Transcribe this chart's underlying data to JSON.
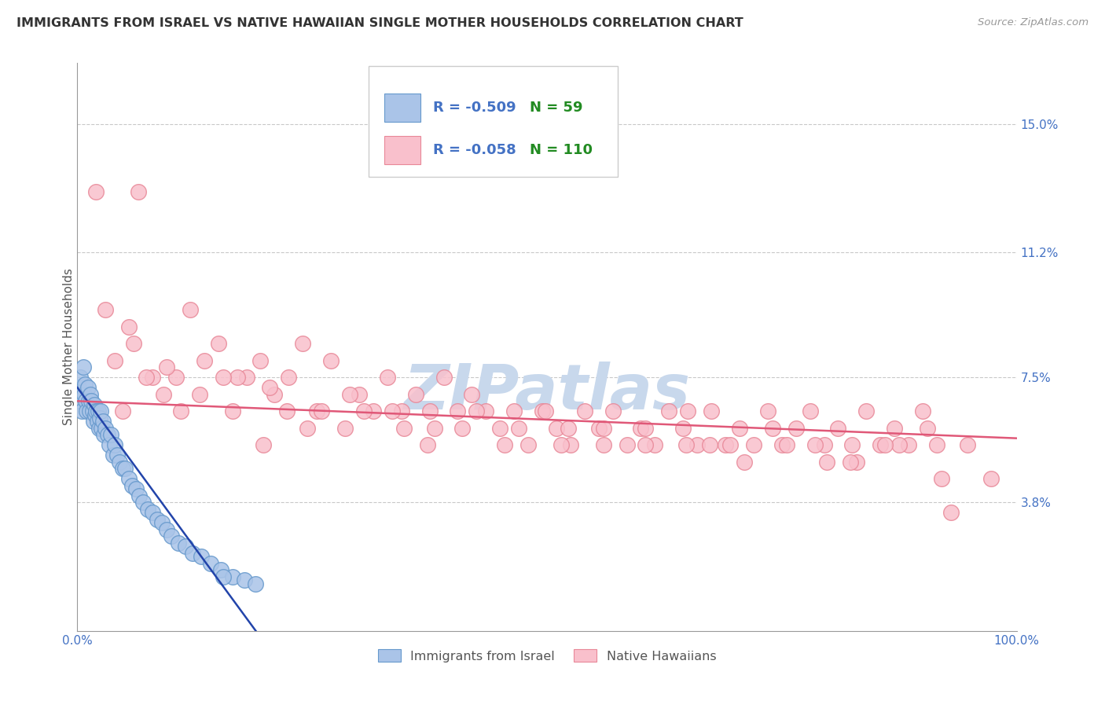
{
  "title": "IMMIGRANTS FROM ISRAEL VS NATIVE HAWAIIAN SINGLE MOTHER HOUSEHOLDS CORRELATION CHART",
  "source_text": "Source: ZipAtlas.com",
  "ylabel": "Single Mother Households",
  "yticks": [
    0.038,
    0.075,
    0.112,
    0.15
  ],
  "ytick_labels": [
    "3.8%",
    "7.5%",
    "11.2%",
    "15.0%"
  ],
  "xlim": [
    0.0,
    1.0
  ],
  "ylim": [
    0.0,
    0.168
  ],
  "xtick_positions": [
    0.0,
    1.0
  ],
  "xtick_labels": [
    "0.0%",
    "100.0%"
  ],
  "blue_R": -0.509,
  "blue_N": 59,
  "pink_R": -0.058,
  "pink_N": 110,
  "blue_marker_color": "#aac4e8",
  "blue_edge_color": "#6699cc",
  "pink_marker_color": "#f9c0cc",
  "pink_edge_color": "#e88898",
  "blue_line_color": "#2244aa",
  "pink_line_color": "#e05878",
  "axis_color": "#4472C4",
  "grid_color": "#bbbbbb",
  "title_color": "#333333",
  "legend_R_color": "#4472C4",
  "legend_N_color": "#228B22",
  "watermark_color": "#c8d8ec",
  "background_color": "#ffffff",
  "blue_x": [
    0.001,
    0.002,
    0.003,
    0.004,
    0.005,
    0.006,
    0.007,
    0.008,
    0.009,
    0.01,
    0.011,
    0.012,
    0.013,
    0.014,
    0.015,
    0.016,
    0.017,
    0.018,
    0.019,
    0.02,
    0.021,
    0.022,
    0.023,
    0.024,
    0.025,
    0.026,
    0.027,
    0.028,
    0.03,
    0.032,
    0.034,
    0.036,
    0.038,
    0.04,
    0.042,
    0.045,
    0.048,
    0.051,
    0.055,
    0.058,
    0.062,
    0.066,
    0.07,
    0.075,
    0.08,
    0.085,
    0.09,
    0.095,
    0.1,
    0.108,
    0.115,
    0.123,
    0.132,
    0.142,
    0.153,
    0.165,
    0.178,
    0.19,
    0.155
  ],
  "blue_y": [
    0.072,
    0.068,
    0.075,
    0.07,
    0.065,
    0.078,
    0.07,
    0.073,
    0.068,
    0.065,
    0.072,
    0.068,
    0.065,
    0.07,
    0.068,
    0.065,
    0.062,
    0.067,
    0.064,
    0.065,
    0.062,
    0.065,
    0.06,
    0.063,
    0.065,
    0.06,
    0.062,
    0.058,
    0.06,
    0.058,
    0.055,
    0.058,
    0.052,
    0.055,
    0.052,
    0.05,
    0.048,
    0.048,
    0.045,
    0.043,
    0.042,
    0.04,
    0.038,
    0.036,
    0.035,
    0.033,
    0.032,
    0.03,
    0.028,
    0.026,
    0.025,
    0.023,
    0.022,
    0.02,
    0.018,
    0.016,
    0.015,
    0.014,
    0.016
  ],
  "pink_x": [
    0.02,
    0.03,
    0.04,
    0.055,
    0.065,
    0.08,
    0.092,
    0.105,
    0.12,
    0.135,
    0.15,
    0.165,
    0.18,
    0.195,
    0.21,
    0.225,
    0.24,
    0.255,
    0.27,
    0.285,
    0.3,
    0.315,
    0.33,
    0.345,
    0.36,
    0.375,
    0.39,
    0.405,
    0.42,
    0.435,
    0.45,
    0.465,
    0.48,
    0.495,
    0.51,
    0.525,
    0.54,
    0.555,
    0.57,
    0.585,
    0.6,
    0.615,
    0.63,
    0.645,
    0.66,
    0.675,
    0.69,
    0.705,
    0.72,
    0.735,
    0.75,
    0.765,
    0.78,
    0.795,
    0.81,
    0.825,
    0.84,
    0.855,
    0.87,
    0.885,
    0.9,
    0.915,
    0.93,
    0.06,
    0.095,
    0.13,
    0.17,
    0.205,
    0.245,
    0.29,
    0.335,
    0.38,
    0.425,
    0.47,
    0.515,
    0.56,
    0.605,
    0.65,
    0.695,
    0.74,
    0.785,
    0.83,
    0.875,
    0.92,
    0.11,
    0.26,
    0.41,
    0.56,
    0.71,
    0.86,
    0.155,
    0.305,
    0.455,
    0.605,
    0.755,
    0.905,
    0.048,
    0.198,
    0.348,
    0.498,
    0.648,
    0.798,
    0.948,
    0.073,
    0.223,
    0.373,
    0.523,
    0.673,
    0.823,
    0.973
  ],
  "pink_y": [
    0.13,
    0.095,
    0.08,
    0.09,
    0.13,
    0.075,
    0.07,
    0.075,
    0.095,
    0.08,
    0.085,
    0.065,
    0.075,
    0.08,
    0.07,
    0.075,
    0.085,
    0.065,
    0.08,
    0.06,
    0.07,
    0.065,
    0.075,
    0.065,
    0.07,
    0.065,
    0.075,
    0.065,
    0.07,
    0.065,
    0.06,
    0.065,
    0.055,
    0.065,
    0.06,
    0.055,
    0.065,
    0.06,
    0.065,
    0.055,
    0.06,
    0.055,
    0.065,
    0.06,
    0.055,
    0.065,
    0.055,
    0.06,
    0.055,
    0.065,
    0.055,
    0.06,
    0.065,
    0.055,
    0.06,
    0.055,
    0.065,
    0.055,
    0.06,
    0.055,
    0.065,
    0.055,
    0.035,
    0.085,
    0.078,
    0.07,
    0.075,
    0.072,
    0.06,
    0.07,
    0.065,
    0.06,
    0.065,
    0.06,
    0.055,
    0.06,
    0.055,
    0.065,
    0.055,
    0.06,
    0.055,
    0.05,
    0.055,
    0.045,
    0.065,
    0.065,
    0.06,
    0.055,
    0.05,
    0.055,
    0.075,
    0.065,
    0.055,
    0.06,
    0.055,
    0.06,
    0.065,
    0.055,
    0.06,
    0.065,
    0.055,
    0.05,
    0.055,
    0.075,
    0.065,
    0.055,
    0.06,
    0.055,
    0.05,
    0.045
  ],
  "blue_trend_x": [
    0.0,
    0.19
  ],
  "blue_trend_y_start": 0.072,
  "blue_trend_y_end": 0.0,
  "pink_trend_x": [
    0.0,
    1.0
  ],
  "pink_trend_y_start": 0.068,
  "pink_trend_y_end": 0.057
}
